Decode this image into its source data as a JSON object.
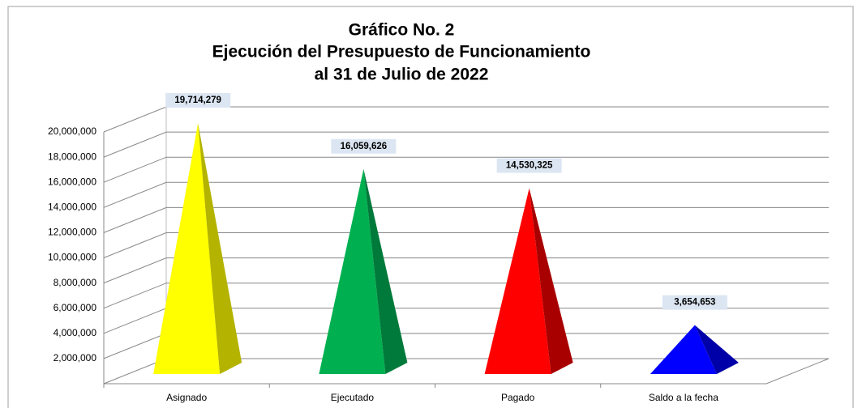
{
  "chart_data": {
    "type": "pyramid3d",
    "title": [
      "Gráfico No. 2",
      "Ejecución del Presupuesto de Funcionamiento",
      "al 31 de Julio de 2022"
    ],
    "categories": [
      "Asignado",
      "Ejecutado",
      "Pagado",
      "Saldo a la fecha"
    ],
    "values": [
      19714279,
      16059626,
      14530325,
      3654653
    ],
    "value_labels": [
      "19,714,279",
      "16,059,626",
      "14,530,325",
      "3,654,653"
    ],
    "colors": [
      "#ffff00",
      "#00b050",
      "#ff0000",
      "#0000ff"
    ],
    "side_colors": [
      "#b3b300",
      "#007a3a",
      "#a80000",
      "#0000a8"
    ],
    "ylim": [
      0,
      20000000
    ],
    "yticks": [
      {
        "value": 2000000,
        "label": "2,000,000"
      },
      {
        "value": 4000000,
        "label": "4,000,000"
      },
      {
        "value": 6000000,
        "label": "6,000,000"
      },
      {
        "value": 8000000,
        "label": "8,000,000"
      },
      {
        "value": 10000000,
        "label": "10,000,000"
      },
      {
        "value": 12000000,
        "label": "12,000,000"
      },
      {
        "value": 14000000,
        "label": "14,000,000"
      },
      {
        "value": 16000000,
        "label": "16,000,000"
      },
      {
        "value": 18000000,
        "label": "18,000,000"
      },
      {
        "value": 20000000,
        "label": "20,000,000"
      }
    ],
    "grid": true
  }
}
